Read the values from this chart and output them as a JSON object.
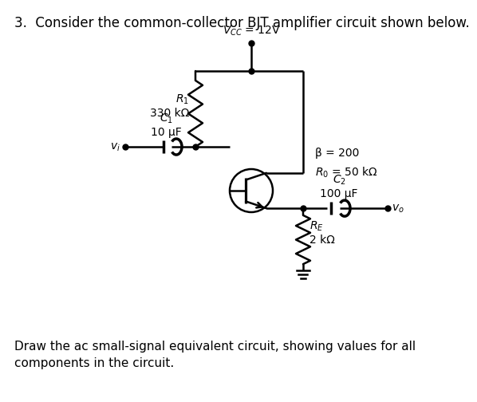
{
  "title_text": "3.  Consider the common-collector BJT amplifier circuit shown below.",
  "vcc_label": "$V_{CC}$ = 12V",
  "r1_label": "$R_1$\n330 kΩ",
  "c1_label": "$C_1$\n10 μF",
  "beta_label": "β = 200",
  "ro_label": "$R_0$ = 50 kΩ",
  "c2_label": "$C_2$\n100 μF",
  "re_label": "$R_E$\n2 kΩ",
  "vi_label": "$v_i$",
  "vo_label": "$v_o$",
  "footer": "Draw the ac small-signal equivalent circuit, showing values for all\ncomponents in the circuit.",
  "bg_color": "#ffffff",
  "line_color": "#000000",
  "fontsize_title": 12,
  "fontsize_labels": 10,
  "fontsize_footer": 11
}
